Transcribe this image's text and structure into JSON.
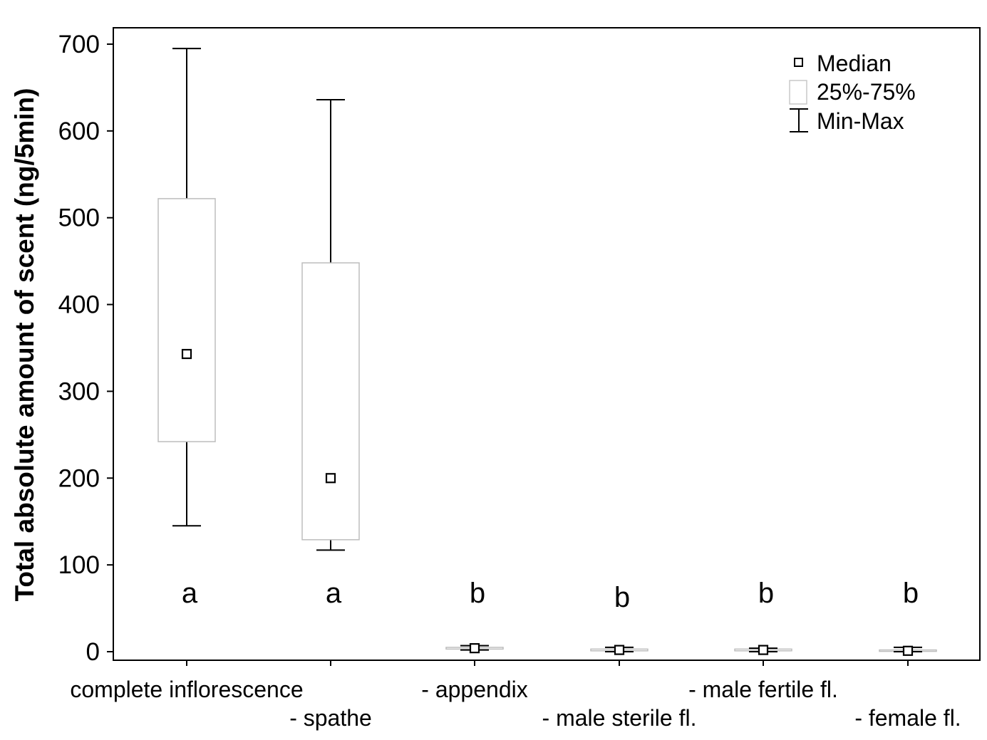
{
  "chart_data": {
    "type": "box",
    "ylabel": "Total absolute amount of scent (ng/5min)",
    "xlabel": "",
    "ylim": [
      -10,
      720
    ],
    "yticks": [
      0,
      100,
      200,
      300,
      400,
      500,
      600,
      700
    ],
    "grid": false,
    "legend": {
      "position": "top-right",
      "entries": [
        {
          "symbol": "median",
          "label": "Median"
        },
        {
          "symbol": "box",
          "label": "25%-75%"
        },
        {
          "symbol": "whisker",
          "label": "Min-Max"
        }
      ]
    },
    "categories": [
      {
        "label": "complete inflorescence",
        "row": 0,
        "min": 145,
        "q1": 242,
        "median": 343,
        "q3": 522,
        "max": 695,
        "group": "a"
      },
      {
        "label": "- spathe",
        "row": 1,
        "min": 117,
        "q1": 129,
        "median": 200,
        "q3": 448,
        "max": 636,
        "group": "a"
      },
      {
        "label": "- appendix",
        "row": 0,
        "min": 2,
        "q1": 3,
        "median": 4,
        "q3": 5,
        "max": 7,
        "group": "b"
      },
      {
        "label": "- male sterile fl.",
        "row": 1,
        "min": 0,
        "q1": 1,
        "median": 2,
        "q3": 3,
        "max": 5,
        "group": "b"
      },
      {
        "label": "- male fertile fl.",
        "row": 0,
        "min": 0,
        "q1": 1,
        "median": 2,
        "q3": 3,
        "max": 4,
        "group": "b"
      },
      {
        "label": "- female fl.",
        "row": 1,
        "min": 0,
        "q1": 1,
        "median": 1,
        "q3": 2,
        "max": 5,
        "group": "b"
      }
    ]
  }
}
